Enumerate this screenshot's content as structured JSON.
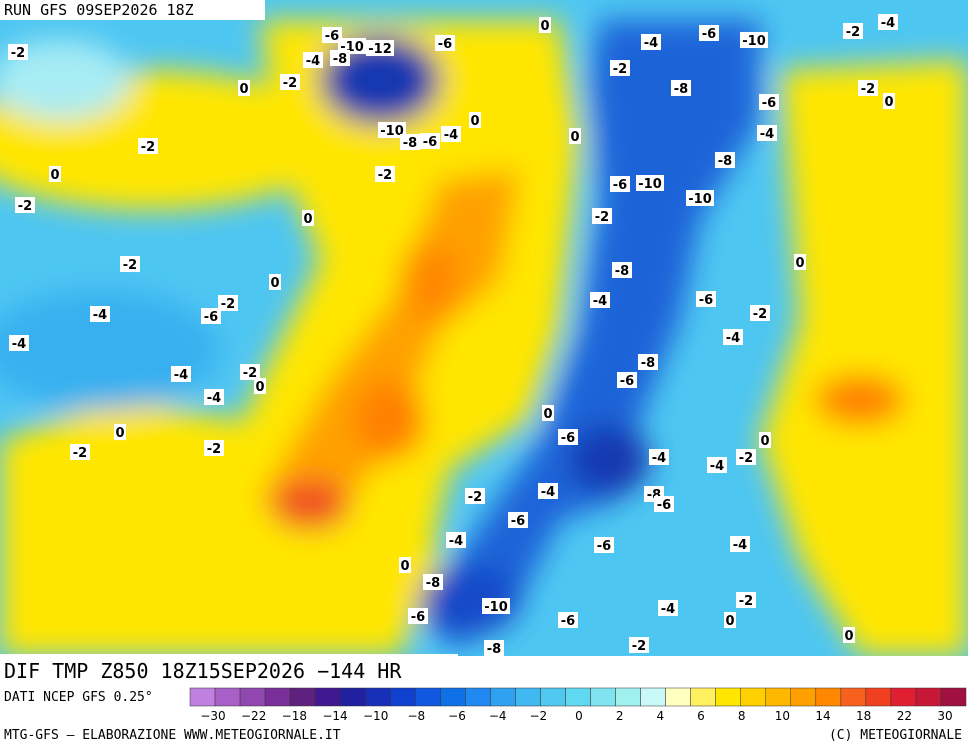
{
  "header": {
    "run": "RUN GFS 09SEP2026 18Z"
  },
  "map": {
    "labels": [
      "-2",
      "-6",
      "-10",
      "-12",
      "-4",
      "-8",
      "-6",
      "0",
      "-2",
      "0",
      "-4",
      "-6",
      "-10",
      "-2",
      "-4",
      "-2",
      "-8",
      "-2",
      "0",
      "-6",
      "-4",
      "-2",
      "-10",
      "-8",
      "-6",
      "-4",
      "0",
      "0",
      "-8",
      "0",
      "-2",
      "-6",
      "-10",
      "-2",
      "0",
      "-10",
      "-2",
      "-2",
      "0",
      "-8",
      "0",
      "-2",
      "-6",
      "-4",
      "-4",
      "-6",
      "-2",
      "-4",
      "-4",
      "-8",
      "-4",
      "-2",
      "0",
      "-6",
      "-4",
      "0",
      "0",
      "-2",
      "-2",
      "-6",
      "0",
      "-4",
      "-4",
      "-2",
      "-2",
      "-4",
      "-8",
      "-6",
      "-6",
      "-4",
      "-6",
      "-4",
      "0",
      "-8",
      "-4",
      "-2",
      "-10",
      "-6",
      "-6",
      "0",
      "-2",
      "0",
      "-8"
    ]
  },
  "footer": {
    "title": "DIF TMP Z850 18Z15SEP2026 −144 HR",
    "source": "DATI NCEP GFS 0.25°",
    "credit": "MTG-GFS — ELABORAZIONE WWW.METEOGIORNALE.IT",
    "copyright": "(C) METEOGIORNALE"
  },
  "legend": {
    "colors": [
      "#c080e0",
      "#a860c8",
      "#9048b0",
      "#783098",
      "#602080",
      "#401890",
      "#2020a0",
      "#1830b8",
      "#1040d0",
      "#1058e0",
      "#1070e8",
      "#2088f0",
      "#30a0f0",
      "#40b8f0",
      "#50c8f0",
      "#60d8f0",
      "#80e4f0",
      "#a0f0f0",
      "#c8f8f8",
      "#ffffc0",
      "#fff060",
      "#ffe600",
      "#ffd000",
      "#ffb800",
      "#ffa000",
      "#ff8800",
      "#f86020",
      "#f04020",
      "#e02030",
      "#c81838",
      "#a01040"
    ],
    "labels": [
      "−30",
      "−22",
      "−18",
      "−14",
      "−10",
      "−8",
      "−6",
      "−4",
      "−2",
      "0",
      "2",
      "4",
      "6",
      "8",
      "10",
      "14",
      "18",
      "22",
      "30"
    ]
  }
}
